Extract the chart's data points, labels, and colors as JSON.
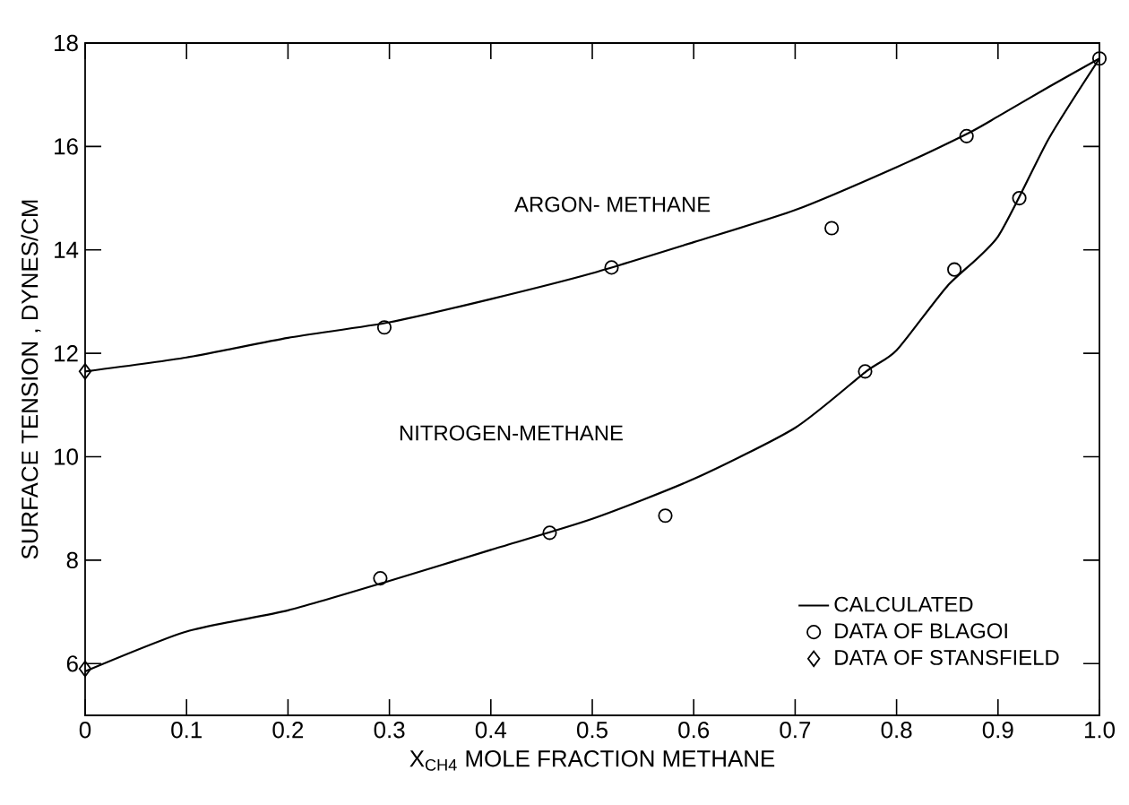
{
  "chart_data": {
    "type": "line",
    "xlabel": "X$_{CH4}$ MOLE FRACTION METHANE",
    "ylabel": "SURFACE TENSION , DYNES/CM",
    "xlim": [
      0,
      1
    ],
    "ylim": [
      5,
      18
    ],
    "xticks": [
      0,
      0.1,
      0.2,
      0.3,
      0.4,
      0.5,
      0.6,
      0.7,
      0.8,
      0.9,
      {
        "value": 1,
        "label": "1.0"
      }
    ],
    "yticks": [
      6,
      8,
      10,
      12,
      14,
      16,
      18
    ],
    "grid": false,
    "legend": "bottom right",
    "annotations": [
      "ARGON- METHANE",
      "NITROGEN-METHANE"
    ],
    "series": [
      {
        "name": "CALCULATED",
        "color": "#000000",
        "marker": "none",
        "line_style": "solid",
        "x": [
          0,
          0.1,
          0.2,
          0.3,
          0.4,
          0.5,
          0.6,
          0.7,
          0.8,
          0.87,
          0.9,
          0.95,
          1.0
        ],
        "values": [
          11.65,
          11.92,
          12.3,
          12.6,
          13.05,
          13.55,
          14.15,
          14.77,
          15.6,
          16.25,
          16.58,
          17.15,
          17.7
        ]
      },
      {
        "color": "#000000",
        "marker": "none",
        "line_style": "solid",
        "x": [
          0,
          0.1,
          0.2,
          0.3,
          0.4,
          0.5,
          0.6,
          0.7,
          0.77,
          0.8,
          0.85,
          0.9,
          0.95,
          1.0
        ],
        "values": [
          5.85,
          6.62,
          7.03,
          7.6,
          8.2,
          8.8,
          9.57,
          10.56,
          11.65,
          12.06,
          13.3,
          14.26,
          16.15,
          17.7
        ]
      },
      {
        "name": "DATA OF BLAGOI",
        "type": "scatter",
        "color": "#000000",
        "marker": "circle",
        "x": [
          0.295,
          0.519,
          0.736,
          0.869,
          1.0,
          0.291,
          0.458,
          0.572,
          0.769,
          0.857,
          0.921
        ],
        "values": [
          12.5,
          13.66,
          14.42,
          16.2,
          17.7,
          7.65,
          8.53,
          8.86,
          11.65,
          13.62,
          15.0
        ]
      },
      {
        "name": "DATA OF STANSFIELD",
        "type": "scatter",
        "color": "#000000",
        "marker": "diamond",
        "x": [
          0,
          0
        ],
        "values": [
          11.65,
          5.9
        ]
      }
    ]
  }
}
